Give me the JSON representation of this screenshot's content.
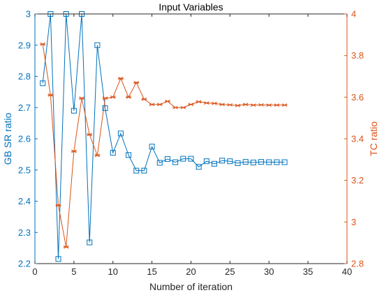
{
  "chart_data": {
    "type": "line",
    "title": "Input Variables",
    "xlabel": "Number of iteration",
    "xlim": [
      0,
      40
    ],
    "x_ticks": [
      "0",
      "5",
      "10",
      "15",
      "20",
      "25",
      "30",
      "35",
      "40"
    ],
    "grid": false,
    "legend": "none",
    "y_left": {
      "label": "GB SR ratio",
      "ylim": [
        2.2,
        3.0
      ],
      "ticks": [
        "2.2",
        "2.3",
        "2.4",
        "2.5",
        "2.6",
        "2.7",
        "2.8",
        "2.9",
        "3"
      ],
      "color": "#0072bd"
    },
    "y_right": {
      "label": "TC ratio",
      "ylim": [
        2.8,
        4.0
      ],
      "ticks": [
        "2.8",
        "3",
        "3.2",
        "3.4",
        "3.6",
        "3.8",
        "4"
      ],
      "color": "#d95319"
    },
    "series": [
      {
        "axis": "left",
        "marker": "square",
        "color": "#0072bd",
        "x": [
          1,
          2,
          3,
          4,
          5,
          6,
          7,
          8,
          9,
          10,
          11,
          12,
          13,
          14,
          15,
          16,
          17,
          18,
          19,
          20,
          21,
          22,
          23,
          24,
          25,
          26,
          27,
          28,
          29,
          30,
          31,
          32
        ],
        "values": [
          2.778,
          3.0,
          2.215,
          3.0,
          2.69,
          3.0,
          2.268,
          2.9,
          2.698,
          2.555,
          2.617,
          2.548,
          2.498,
          2.498,
          2.575,
          2.523,
          2.535,
          2.525,
          2.536,
          2.536,
          2.51,
          2.528,
          2.52,
          2.53,
          2.528,
          2.522,
          2.526,
          2.524,
          2.526,
          2.525,
          2.525,
          2.525
        ]
      },
      {
        "axis": "right",
        "marker": "asterisk",
        "color": "#d95319",
        "x": [
          1,
          2,
          3,
          4,
          5,
          6,
          7,
          8,
          9,
          10,
          11,
          12,
          13,
          14,
          15,
          16,
          17,
          18,
          19,
          20,
          21,
          22,
          23,
          24,
          25,
          26,
          27,
          28,
          29,
          30,
          31,
          32
        ],
        "values": [
          3.855,
          3.61,
          3.08,
          2.88,
          3.34,
          3.595,
          3.42,
          3.32,
          3.595,
          3.6,
          3.69,
          3.6,
          3.67,
          3.59,
          3.565,
          3.565,
          3.58,
          3.55,
          3.55,
          3.565,
          3.578,
          3.572,
          3.57,
          3.565,
          3.563,
          3.56,
          3.565,
          3.562,
          3.563,
          3.562,
          3.562,
          3.562
        ]
      }
    ]
  }
}
